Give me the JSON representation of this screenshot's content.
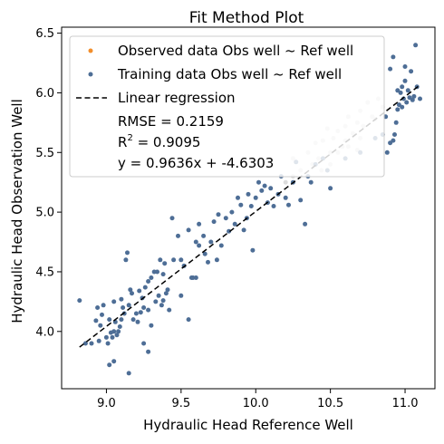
{
  "chart_data": {
    "type": "scatter",
    "title": "Fit Method Plot",
    "xlabel": "Hydraulic Head Reference Well",
    "ylabel": "Hydraulic Head Observation Well",
    "xlim": [
      8.7,
      11.2
    ],
    "ylim": [
      3.52,
      6.55
    ],
    "xticks": [
      "9.0",
      "9.5",
      "10.0",
      "10.5",
      "11.0"
    ],
    "yticks": [
      "4.0",
      "4.5",
      "5.0",
      "5.5",
      "6.0",
      "6.5"
    ],
    "grid": false,
    "legend_position": "top-left",
    "legend": {
      "observed": "Observed data Obs well ~ Ref well",
      "training": "Training data Obs well ~ Ref well",
      "regression": "Linear regression",
      "rmse": "RMSE = 0.2159",
      "r2_prefix": "R",
      "r2_sup": "2",
      "r2_value": " = 0.9095",
      "equation": "y = 0.9636x + -4.6303"
    },
    "colors": {
      "observed": "#f28e2b",
      "training": "#4e6e96",
      "regression": "#000000"
    },
    "regression": {
      "slope": 0.9636,
      "intercept": -4.6303,
      "x_range": [
        8.82,
        11.1
      ]
    },
    "series": [
      {
        "name": "Training data Obs well ~ Ref well",
        "points": [
          [
            8.82,
            4.26
          ],
          [
            8.86,
            3.9
          ],
          [
            8.9,
            3.9
          ],
          [
            8.93,
            4.09
          ],
          [
            8.94,
            4.2
          ],
          [
            8.95,
            3.92
          ],
          [
            8.96,
            4.05
          ],
          [
            8.97,
            4.14
          ],
          [
            8.98,
            4.22
          ],
          [
            9.0,
            3.95
          ],
          [
            9.01,
            3.9
          ],
          [
            9.02,
            4.1
          ],
          [
            9.03,
            3.99
          ],
          [
            9.04,
            3.95
          ],
          [
            9.05,
            4.0
          ],
          [
            9.05,
            4.25
          ],
          [
            9.06,
            4.08
          ],
          [
            9.07,
            3.97
          ],
          [
            9.08,
            4.0
          ],
          [
            9.09,
            4.04
          ],
          [
            9.1,
            4.1
          ],
          [
            9.1,
            4.27
          ],
          [
            9.11,
            4.2
          ],
          [
            9.12,
            4.15
          ],
          [
            9.13,
            4.6
          ],
          [
            9.14,
            4.66
          ],
          [
            9.15,
            4.22
          ],
          [
            9.15,
            3.65
          ],
          [
            9.16,
            4.35
          ],
          [
            9.17,
            4.32
          ],
          [
            9.18,
            4.1
          ],
          [
            9.2,
            4.15
          ],
          [
            9.21,
            4.08
          ],
          [
            9.22,
            4.34
          ],
          [
            9.23,
            4.16
          ],
          [
            9.24,
            4.28
          ],
          [
            9.25,
            4.2
          ],
          [
            9.25,
            3.9
          ],
          [
            9.26,
            4.37
          ],
          [
            9.28,
            4.42
          ],
          [
            9.28,
            4.18
          ],
          [
            9.3,
            4.45
          ],
          [
            9.3,
            4.05
          ],
          [
            9.32,
            4.5
          ],
          [
            9.33,
            4.25
          ],
          [
            9.34,
            4.5
          ],
          [
            9.35,
            4.3
          ],
          [
            9.36,
            4.6
          ],
          [
            9.37,
            4.22
          ],
          [
            9.38,
            4.48
          ],
          [
            9.38,
            4.26
          ],
          [
            9.39,
            4.57
          ],
          [
            9.4,
            4.32
          ],
          [
            9.41,
            4.35
          ],
          [
            9.42,
            4.18
          ],
          [
            9.44,
            4.95
          ],
          [
            9.45,
            4.6
          ],
          [
            9.48,
            4.8
          ],
          [
            9.5,
            4.6
          ],
          [
            9.5,
            4.3
          ],
          [
            9.52,
            4.55
          ],
          [
            9.55,
            4.85
          ],
          [
            9.57,
            4.45
          ],
          [
            9.6,
            4.45
          ],
          [
            9.6,
            4.75
          ],
          [
            9.62,
            4.72
          ],
          [
            9.65,
            4.8
          ],
          [
            9.66,
            4.65
          ],
          [
            9.68,
            4.58
          ],
          [
            9.7,
            4.75
          ],
          [
            9.72,
            4.92
          ],
          [
            9.74,
            4.6
          ],
          [
            9.75,
            4.98
          ],
          [
            9.77,
            4.72
          ],
          [
            9.8,
            4.95
          ],
          [
            9.82,
            4.84
          ],
          [
            9.84,
            5.0
          ],
          [
            9.86,
            4.9
          ],
          [
            9.88,
            5.12
          ],
          [
            9.9,
            5.06
          ],
          [
            9.92,
            4.85
          ],
          [
            9.94,
            4.95
          ],
          [
            9.95,
            5.15
          ],
          [
            9.97,
            5.05
          ],
          [
            9.98,
            4.68
          ],
          [
            10.0,
            5.12
          ],
          [
            10.02,
            5.25
          ],
          [
            10.04,
            5.18
          ],
          [
            10.06,
            5.22
          ],
          [
            10.08,
            5.08
          ],
          [
            10.1,
            5.2
          ],
          [
            10.12,
            5.05
          ],
          [
            10.15,
            5.15
          ],
          [
            10.17,
            5.3
          ],
          [
            10.2,
            5.12
          ],
          [
            10.22,
            5.06
          ],
          [
            10.25,
            5.25
          ],
          [
            10.27,
            5.42
          ],
          [
            10.3,
            5.1
          ],
          [
            10.33,
            4.9
          ],
          [
            10.35,
            5.3
          ],
          [
            10.37,
            5.25
          ],
          [
            10.4,
            5.4
          ],
          [
            10.45,
            5.45
          ],
          [
            10.48,
            5.35
          ],
          [
            10.5,
            5.2
          ],
          [
            10.6,
            5.45
          ],
          [
            10.7,
            5.5
          ],
          [
            10.8,
            5.62
          ],
          [
            10.88,
            5.5
          ],
          [
            10.9,
            5.58
          ],
          [
            10.92,
            5.6
          ],
          [
            10.93,
            5.65
          ],
          [
            10.94,
            5.75
          ],
          [
            10.95,
            5.86
          ],
          [
            10.96,
            5.9
          ],
          [
            10.97,
            6.0
          ],
          [
            10.98,
            5.88
          ],
          [
            10.99,
            5.95
          ],
          [
            11.0,
            6.1
          ],
          [
            11.01,
            5.92
          ],
          [
            11.02,
            6.02
          ],
          [
            11.03,
            5.96
          ],
          [
            11.04,
            6.18
          ],
          [
            11.05,
            5.94
          ],
          [
            11.06,
            5.97
          ],
          [
            11.07,
            6.4
          ],
          [
            11.08,
            6.05
          ],
          [
            11.1,
            5.95
          ],
          [
            10.9,
            6.2
          ],
          [
            10.92,
            6.3
          ],
          [
            10.95,
            6.02
          ],
          [
            10.98,
            6.05
          ],
          [
            11.0,
            6.22
          ],
          [
            10.85,
            5.65
          ],
          [
            10.87,
            5.8
          ],
          [
            9.58,
            4.45
          ],
          [
            9.62,
            4.9
          ],
          [
            9.55,
            4.1
          ],
          [
            9.28,
            3.83
          ],
          [
            9.02,
            3.72
          ],
          [
            9.05,
            3.75
          ]
        ]
      },
      {
        "name": "Observed data Obs well ~ Ref well",
        "points": []
      }
    ],
    "background_points": [
      [
        10.2,
        5.25
      ],
      [
        10.25,
        5.3
      ],
      [
        10.3,
        5.35
      ],
      [
        10.35,
        5.5
      ],
      [
        10.38,
        5.4
      ],
      [
        10.4,
        5.58
      ],
      [
        10.42,
        5.45
      ],
      [
        10.45,
        5.6
      ],
      [
        10.48,
        5.7
      ],
      [
        10.5,
        5.5
      ],
      [
        10.52,
        5.62
      ],
      [
        10.55,
        5.68
      ],
      [
        10.58,
        5.55
      ],
      [
        10.6,
        5.72
      ],
      [
        10.62,
        5.8
      ],
      [
        10.65,
        5.66
      ],
      [
        10.68,
        5.75
      ],
      [
        10.7,
        5.85
      ],
      [
        10.72,
        5.72
      ],
      [
        10.75,
        5.92
      ],
      [
        10.78,
        5.8
      ],
      [
        10.8,
        5.78
      ],
      [
        10.82,
        5.95
      ],
      [
        10.85,
        5.88
      ],
      [
        10.55,
        5.5
      ],
      [
        10.62,
        5.55
      ],
      [
        10.7,
        5.62
      ],
      [
        10.6,
        5.6
      ],
      [
        10.44,
        5.35
      ],
      [
        10.5,
        5.4
      ],
      [
        10.25,
        5.45
      ],
      [
        10.68,
        5.52
      ]
    ]
  }
}
